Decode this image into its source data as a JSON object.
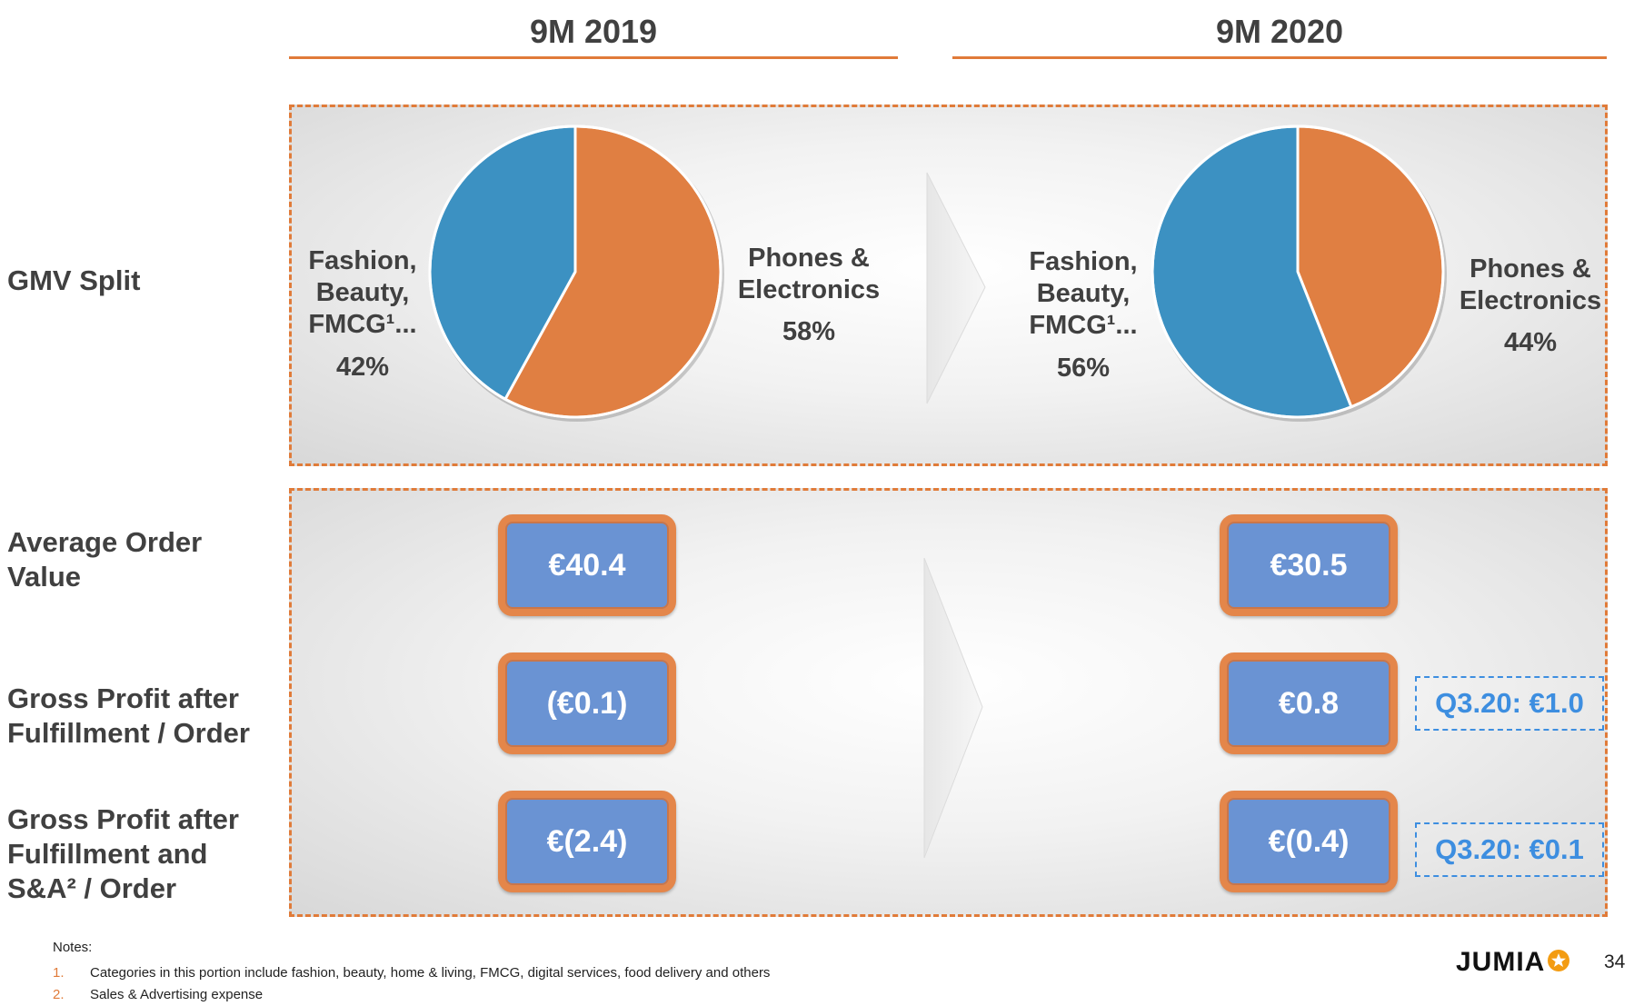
{
  "header": {
    "left_period": "9M 2019",
    "right_period": "9M 2020"
  },
  "row_labels": {
    "gmv_split": "GMV Split",
    "aov": "Average Order\nValue",
    "gp_fulfillment": "Gross Profit after\nFulfillment / Order",
    "gp_fulfillment_sa": "Gross Profit after\nFulfillment and\nS&A² / Order"
  },
  "chart_data": [
    {
      "type": "pie",
      "title": "9M 2019",
      "slices": [
        {
          "name": "Phones & Electronics",
          "label": "Phones &\nElectronics",
          "value": 58,
          "pct_label": "58%",
          "color": "#e07f42"
        },
        {
          "name": "Fashion, Beauty, FMCG¹...",
          "label": "Fashion,\nBeauty,\nFMCG¹...",
          "value": 42,
          "pct_label": "42%",
          "color": "#3c91c2"
        }
      ]
    },
    {
      "type": "pie",
      "title": "9M 2020",
      "slices": [
        {
          "name": "Phones & Electronics",
          "label": "Phones &\nElectronics",
          "value": 44,
          "pct_label": "44%",
          "color": "#e07f42"
        },
        {
          "name": "Fashion, Beauty, FMCG¹...",
          "label": "Fashion,\nBeauty,\nFMCG¹...",
          "value": 56,
          "pct_label": "56%",
          "color": "#3c91c2"
        }
      ]
    }
  ],
  "metrics": {
    "aov_2019": "€40.4",
    "aov_2020": "€30.5",
    "gp_ff_2019": "(€0.1)",
    "gp_ff_2020": "€0.8",
    "gp_ff_q3": "Q3.20: €1.0",
    "gp_ffsa_2019": "€(2.4)",
    "gp_ffsa_2020": "€(0.4)",
    "gp_ffsa_q3": "Q3.20: €0.1"
  },
  "notes": {
    "title": "Notes:",
    "items": [
      {
        "num": "1.",
        "text": "Categories in this portion include fashion, beauty, home & living, FMCG, digital services, food delivery and others"
      },
      {
        "num": "2.",
        "text": "Sales & Advertising expense"
      }
    ]
  },
  "footer": {
    "logo": "JUMIA",
    "page": "34"
  },
  "colors": {
    "accent_orange": "#e07b39",
    "pie_blue": "#3c91c2",
    "pie_orange": "#e07f42",
    "box_blue": "#6a93d3",
    "q_blue": "#3d8ee0"
  }
}
